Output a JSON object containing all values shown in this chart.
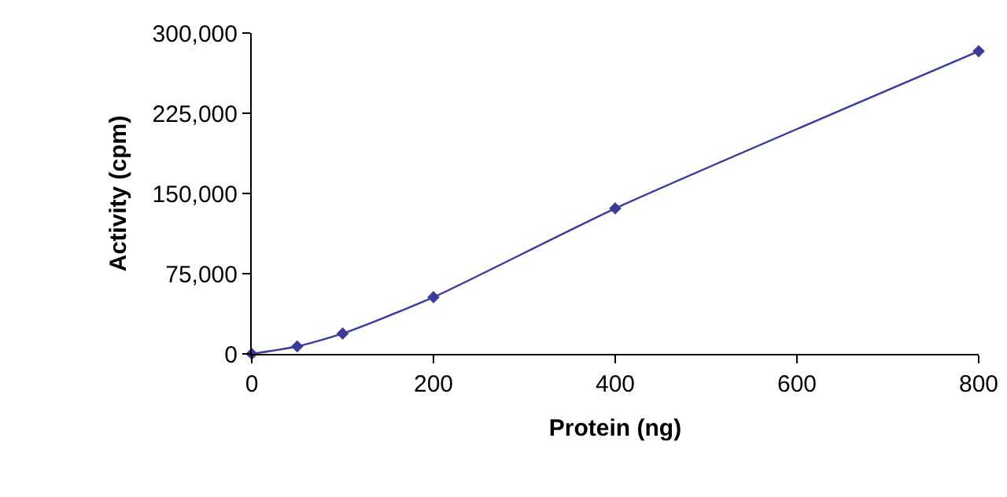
{
  "chart_data": {
    "type": "line",
    "xlabel": "Protein (ng)",
    "ylabel": "Activity (cpm)",
    "x": [
      0,
      50,
      100,
      200,
      400,
      800
    ],
    "series": [
      {
        "color": "#3b3b9a",
        "values": [
          0,
          7000,
          19000,
          53000,
          136000,
          283000
        ]
      }
    ],
    "xlim": [
      0,
      800
    ],
    "xticks": [
      0,
      200,
      400,
      600,
      800
    ],
    "ylim": [
      0,
      300000
    ],
    "yticks": [
      0,
      {
        "value": 75000,
        "label": "75,000"
      },
      {
        "value": 150000,
        "label": "150,000"
      },
      {
        "value": 225000,
        "label": "225,000"
      },
      {
        "value": 300000,
        "label": "300,000"
      }
    ],
    "marker": "diamond",
    "line_style": "solid"
  }
}
